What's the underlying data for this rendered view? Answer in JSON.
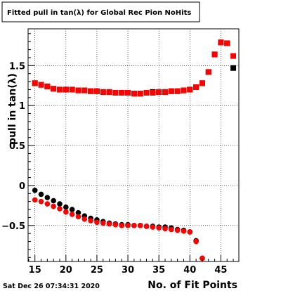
{
  "chart_data": {
    "type": "scatter",
    "title": "Fitted pull in tan(λ) for Global Rec Pion NoHits",
    "xlabel": "No. of Fit Points",
    "ylabel": "pull in tan(λ)",
    "xlim": [
      13.9,
      47.9
    ],
    "ylim": [
      -0.95,
      1.96
    ],
    "x_ticks": [
      15,
      20,
      25,
      30,
      35,
      40,
      45
    ],
    "y_ticks": [
      {
        "value": -0.5,
        "label": "−0.5"
      },
      {
        "value": 0,
        "label": "0"
      },
      {
        "value": 0.5,
        "label": "0.5"
      },
      {
        "value": 1,
        "label": "1"
      },
      {
        "value": 1.5,
        "label": "1.5"
      }
    ],
    "grid": true,
    "legend": "none",
    "timestamp": "Sat Dec 26 07:34:31 2020",
    "series": [
      {
        "marker": "square",
        "color": "#000000",
        "x": [
          15,
          16,
          17,
          18,
          19,
          20,
          21,
          22,
          23,
          24,
          25,
          26,
          27,
          28,
          29,
          30,
          31,
          32,
          33,
          34,
          35,
          36,
          37,
          38,
          39,
          40,
          41,
          42,
          43,
          44,
          45,
          46,
          47
        ],
        "y": [
          1.28,
          1.26,
          1.24,
          1.21,
          1.2,
          1.2,
          1.2,
          1.19,
          1.19,
          1.18,
          1.18,
          1.17,
          1.17,
          1.16,
          1.16,
          1.16,
          1.15,
          1.15,
          1.16,
          1.17,
          1.17,
          1.17,
          1.18,
          1.18,
          1.19,
          1.2,
          1.23,
          1.28,
          1.42,
          1.64,
          1.79,
          1.78,
          1.47
        ]
      },
      {
        "marker": "square",
        "color": "#ff0000",
        "x": [
          15,
          16,
          17,
          18,
          19,
          20,
          21,
          22,
          23,
          24,
          25,
          26,
          27,
          28,
          29,
          30,
          31,
          32,
          33,
          34,
          35,
          36,
          37,
          38,
          39,
          40,
          41,
          42,
          43,
          44,
          45,
          46,
          47
        ],
        "y": [
          1.28,
          1.26,
          1.24,
          1.21,
          1.2,
          1.2,
          1.2,
          1.19,
          1.19,
          1.18,
          1.18,
          1.17,
          1.17,
          1.16,
          1.16,
          1.16,
          1.15,
          1.15,
          1.16,
          1.16,
          1.17,
          1.17,
          1.18,
          1.18,
          1.19,
          1.2,
          1.23,
          1.28,
          1.42,
          1.64,
          1.79,
          1.78,
          1.62
        ]
      },
      {
        "marker": "circle",
        "color": "#000000",
        "x": [
          15,
          16,
          17,
          18,
          19,
          20,
          21,
          22,
          23,
          24,
          25,
          26,
          27,
          28,
          29,
          30,
          31,
          32,
          33,
          34,
          35,
          36,
          37,
          38,
          39,
          40,
          41,
          42
        ],
        "y": [
          -0.06,
          -0.11,
          -0.15,
          -0.19,
          -0.23,
          -0.27,
          -0.3,
          -0.34,
          -0.38,
          -0.41,
          -0.43,
          -0.45,
          -0.47,
          -0.48,
          -0.49,
          -0.49,
          -0.5,
          -0.5,
          -0.51,
          -0.51,
          -0.52,
          -0.52,
          -0.53,
          -0.55,
          -0.56,
          -0.58,
          -0.69,
          -0.91
        ]
      },
      {
        "marker": "circle",
        "color": "#ff0000",
        "x": [
          15,
          16,
          17,
          18,
          19,
          20,
          21,
          22,
          23,
          24,
          25,
          26,
          27,
          28,
          29,
          30,
          31,
          32,
          33,
          34,
          35,
          36,
          37,
          38,
          39,
          40,
          41,
          42
        ],
        "y": [
          -0.18,
          -0.2,
          -0.23,
          -0.26,
          -0.29,
          -0.33,
          -0.36,
          -0.39,
          -0.42,
          -0.44,
          -0.46,
          -0.47,
          -0.48,
          -0.49,
          -0.5,
          -0.5,
          -0.5,
          -0.5,
          -0.51,
          -0.52,
          -0.53,
          -0.54,
          -0.55,
          -0.56,
          -0.57,
          -0.58,
          -0.7,
          -0.91
        ]
      }
    ]
  }
}
